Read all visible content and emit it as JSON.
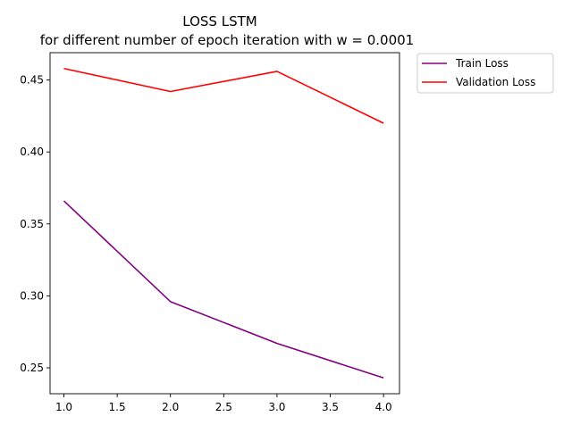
{
  "chart_data": {
    "type": "line",
    "title": "LOSS LSTM",
    "subtitle": "for different number of epoch iteration with w = 0.0001",
    "xlabel": "",
    "ylabel": "",
    "x": [
      1.0,
      2.0,
      3.0,
      4.0
    ],
    "xlim": [
      0.87,
      4.15
    ],
    "ylim": [
      0.232,
      0.469
    ],
    "xticks": [
      1.0,
      1.5,
      2.0,
      2.5,
      3.0,
      3.5,
      4.0
    ],
    "xtick_labels": [
      "1.0",
      "1.5",
      "2.0",
      "2.5",
      "3.0",
      "3.5",
      "4.0"
    ],
    "yticks": [
      0.25,
      0.3,
      0.35,
      0.4,
      0.45
    ],
    "ytick_labels": [
      "0.25",
      "0.30",
      "0.35",
      "0.40",
      "0.45"
    ],
    "grid": false,
    "legend_placement": "outside top-right",
    "series": [
      {
        "name": "Train Loss",
        "color": "#800080",
        "values": [
          0.366,
          0.296,
          0.267,
          0.243
        ]
      },
      {
        "name": "Validation Loss",
        "color": "#ff0000",
        "values": [
          0.458,
          0.442,
          0.456,
          0.42
        ]
      }
    ]
  }
}
